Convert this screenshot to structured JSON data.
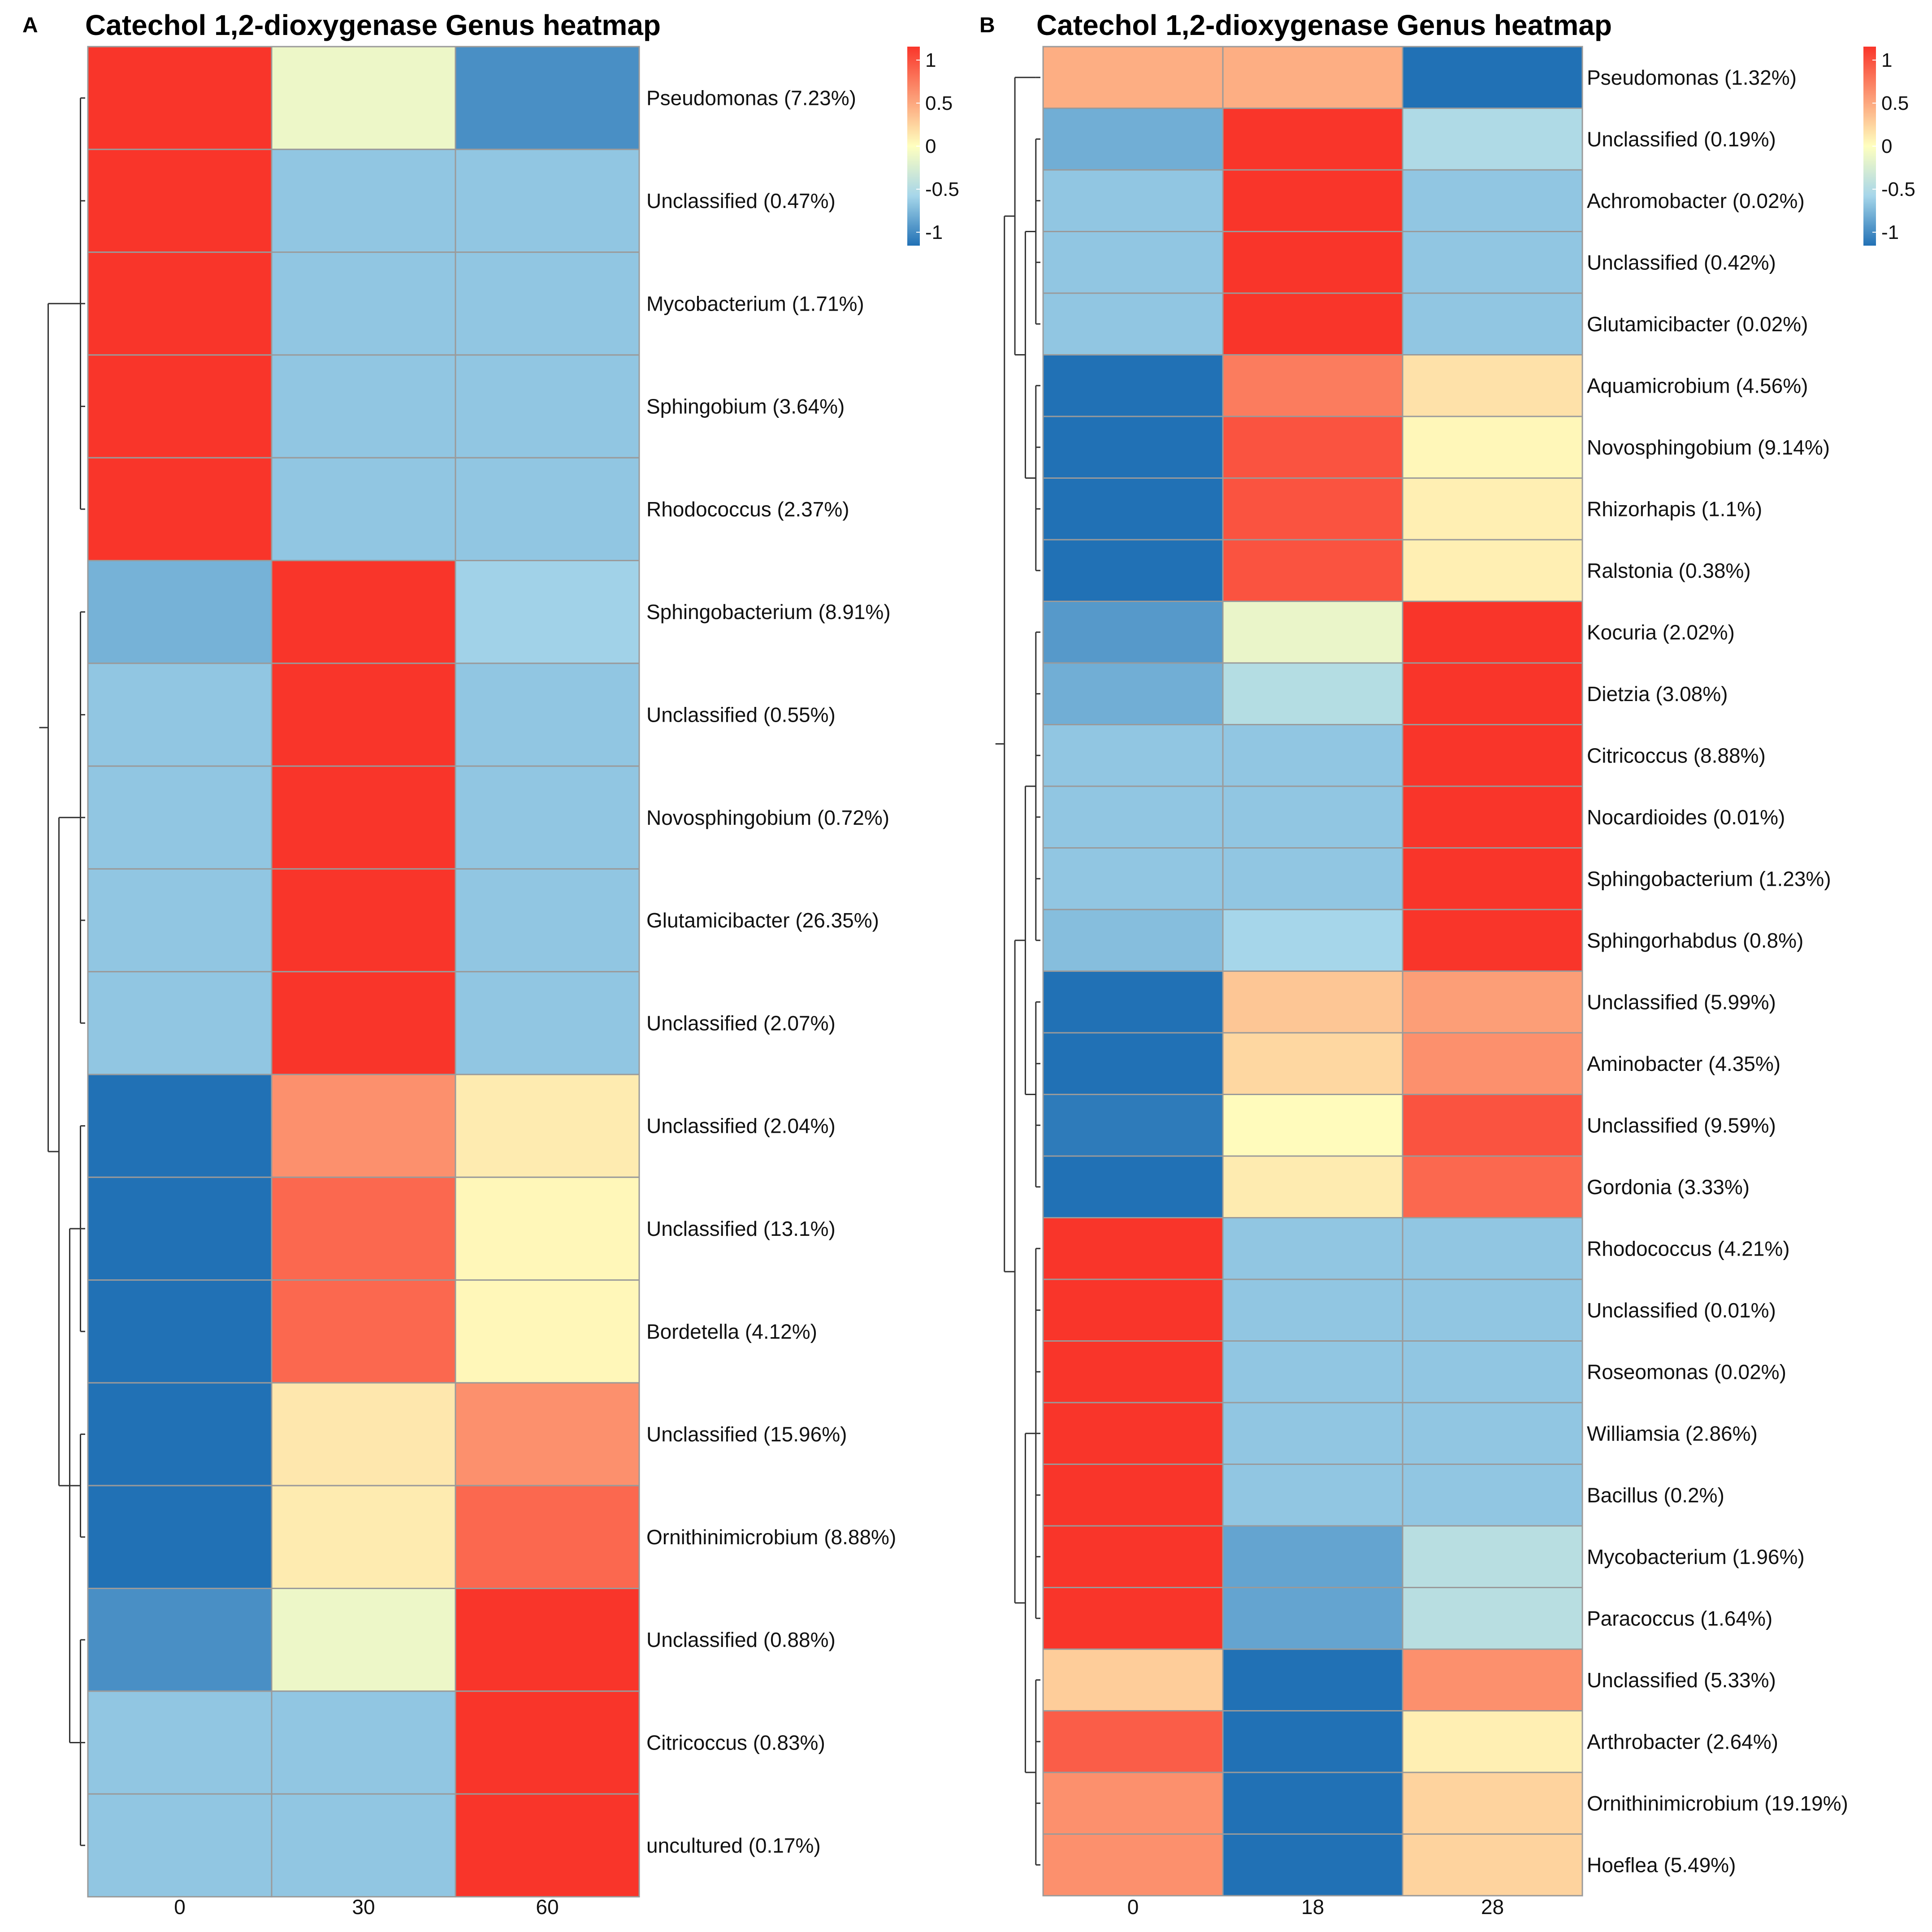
{
  "colorscale": {
    "colors": [
      "#2171b5",
      "#a6d6ea",
      "#ffffbf",
      "#f9352a"
    ],
    "stops": [
      -1,
      -0.5,
      0,
      1
    ],
    "ticks": [
      "1",
      "0.5",
      "0",
      "-0.5",
      "-1"
    ]
  },
  "chart_data": [
    {
      "type": "heatmap",
      "panel": "A",
      "title": "Catechol 1,2-dioxygenase Genus heatmap",
      "columns": [
        "0",
        "30",
        "60"
      ],
      "rows": [
        "Pseudomonas (7.23%)",
        "Unclassified (0.47%)",
        "Mycobacterium (1.71%)",
        "Sphingobium (3.64%)",
        "Rhodococcus (2.37%)",
        "Sphingobacterium (8.91%)",
        "Unclassified (0.55%)",
        "Novosphingobium (0.72%)",
        "Glutamicibacter (26.35%)",
        "Unclassified (2.07%)",
        "Unclassified (2.04%)",
        "Unclassified (13.1%)",
        "Bordetella (4.12%)",
        "Unclassified (15.96%)",
        "Ornithinimicrobium (8.88%)",
        "Unclassified (0.88%)",
        "Citricoccus (0.83%)",
        "uncultured (0.17%)"
      ],
      "values": [
        [
          1.0,
          -0.1,
          -0.85
        ],
        [
          1.15,
          -0.58,
          -0.58
        ],
        [
          1.15,
          -0.58,
          -0.58
        ],
        [
          1.15,
          -0.58,
          -0.58
        ],
        [
          1.15,
          -0.58,
          -0.58
        ],
        [
          -0.68,
          1.15,
          -0.52
        ],
        [
          -0.58,
          1.15,
          -0.58
        ],
        [
          -0.58,
          1.15,
          -0.58
        ],
        [
          -0.58,
          1.15,
          -0.58
        ],
        [
          -0.58,
          1.15,
          -0.58
        ],
        [
          -1.1,
          0.55,
          0.1
        ],
        [
          -1.0,
          0.75,
          0.04
        ],
        [
          -1.0,
          0.75,
          0.04
        ],
        [
          -1.1,
          0.12,
          0.55
        ],
        [
          -1.05,
          0.1,
          0.75
        ],
        [
          -0.85,
          -0.1,
          1.0
        ],
        [
          -0.58,
          -0.58,
          1.15
        ],
        [
          -0.58,
          -0.58,
          1.15
        ]
      ],
      "color_range": [
        -1,
        1
      ]
    },
    {
      "type": "heatmap",
      "panel": "B",
      "title": "Catechol 1,2-dioxygenase Genus heatmap",
      "columns": [
        "0",
        "18",
        "28"
      ],
      "rows": [
        "Pseudomonas (1.32%)",
        "Unclassified (0.19%)",
        "Achromobacter (0.02%)",
        "Unclassified (0.42%)",
        "Glutamicibacter (0.02%)",
        "Aquamicrobium (4.56%)",
        "Novosphingobium (9.14%)",
        "Rhizorhapis (1.1%)",
        "Ralstonia (0.38%)",
        "Kocuria (2.02%)",
        "Dietzia (3.08%)",
        "Citricoccus (8.88%)",
        "Nocardioides (0.01%)",
        "Sphingobacterium (1.23%)",
        "Sphingorhabdus (0.8%)",
        "Unclassified (5.99%)",
        "Aminobacter (4.35%)",
        "Unclassified (9.59%)",
        "Gordonia (3.33%)",
        "Rhodococcus (4.21%)",
        "Unclassified (0.01%)",
        "Roseomonas (0.02%)",
        "Williamsia (2.86%)",
        "Bacillus (0.2%)",
        "Mycobacterium (1.96%)",
        "Paracoccus (1.64%)",
        "Unclassified (5.33%)",
        "Arthrobacter (2.64%)",
        "Ornithinimicrobium (19.19%)",
        "Hoeflea (5.49%)"
      ],
      "values": [
        [
          0.4,
          0.4,
          -1.15
        ],
        [
          -0.7,
          1.15,
          -0.45
        ],
        [
          -0.58,
          1.15,
          -0.58
        ],
        [
          -0.58,
          1.15,
          -0.58
        ],
        [
          -0.58,
          1.15,
          -0.58
        ],
        [
          -1.1,
          0.65,
          0.15
        ],
        [
          -1.0,
          0.85,
          0.04
        ],
        [
          -1.0,
          0.85,
          0.08
        ],
        [
          -1.0,
          0.85,
          0.08
        ],
        [
          -0.8,
          -0.12,
          1.15
        ],
        [
          -0.7,
          -0.42,
          1.15
        ],
        [
          -0.58,
          -0.58,
          1.15
        ],
        [
          -0.58,
          -0.58,
          1.15
        ],
        [
          -0.58,
          -0.58,
          1.15
        ],
        [
          -0.62,
          -0.5,
          1.15
        ],
        [
          -1.15,
          0.28,
          0.48
        ],
        [
          -1.1,
          0.2,
          0.55
        ],
        [
          -0.95,
          0.02,
          0.85
        ],
        [
          -1.0,
          0.1,
          0.75
        ],
        [
          1.15,
          -0.58,
          -0.58
        ],
        [
          1.15,
          -0.58,
          -0.58
        ],
        [
          1.15,
          -0.58,
          -0.58
        ],
        [
          1.15,
          -0.58,
          -0.58
        ],
        [
          1.15,
          -0.58,
          -0.58
        ],
        [
          1.15,
          -0.75,
          -0.4
        ],
        [
          1.15,
          -0.75,
          -0.4
        ],
        [
          0.25,
          -1.15,
          0.55
        ],
        [
          0.8,
          -1.0,
          0.08
        ],
        [
          0.55,
          -1.1,
          0.22
        ],
        [
          0.55,
          -1.1,
          0.22
        ]
      ],
      "color_range": [
        -1,
        1
      ]
    }
  ]
}
